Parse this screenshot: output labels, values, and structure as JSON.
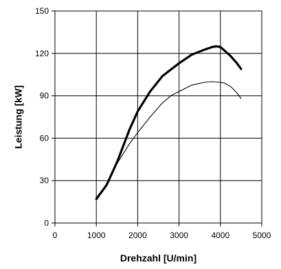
{
  "chart_data": {
    "type": "line",
    "title": "",
    "xlabel": "Drehzahl  [U/min]",
    "ylabel": "Leistung  [kW]",
    "xlim": [
      0,
      5000
    ],
    "ylim": [
      0,
      150
    ],
    "x_ticks": [
      0,
      1000,
      2000,
      3000,
      4000,
      5000
    ],
    "y_ticks": [
      0,
      30,
      60,
      90,
      120,
      150
    ],
    "grid": true,
    "legend": "none",
    "series": [
      {
        "color": "#000000",
        "line": "thick",
        "x": [
          1000,
          1250,
          1500,
          1800,
          2000,
          2300,
          2600,
          3000,
          3300,
          3600,
          3800,
          3900,
          4000,
          4100,
          4250,
          4400,
          4500
        ],
        "y": [
          17,
          27,
          43,
          66,
          79,
          93,
          104,
          113,
          119,
          122.5,
          124.5,
          125,
          124.5,
          122,
          118,
          113,
          109
        ]
      },
      {
        "color": "#000000",
        "line": "thin",
        "x": [
          1000,
          1250,
          1500,
          1800,
          2000,
          2300,
          2600,
          2800,
          3000,
          3300,
          3600,
          3800,
          4000,
          4100,
          4250,
          4400,
          4500
        ],
        "y": [
          17,
          28,
          42,
          56,
          64,
          75,
          85,
          90,
          93,
          97.5,
          99.5,
          100,
          99.5,
          99,
          96.5,
          92,
          88
        ]
      }
    ]
  }
}
